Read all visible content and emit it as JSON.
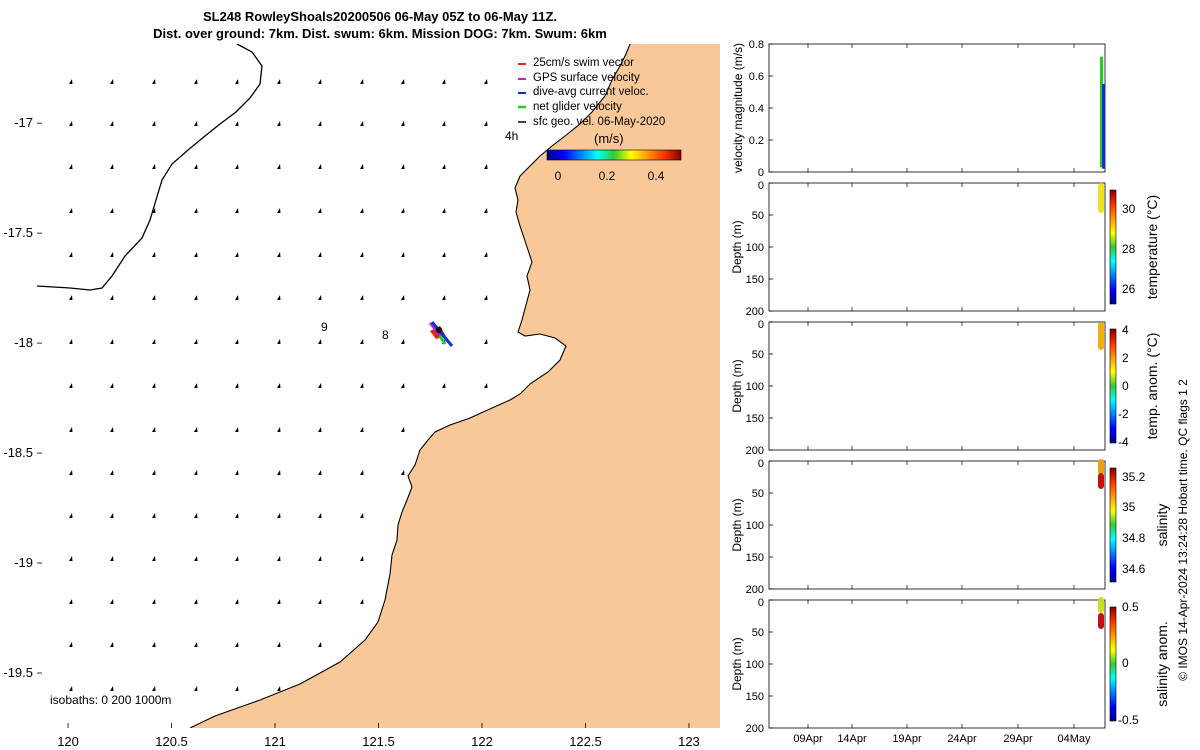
{
  "header": {
    "title_line1": "SL248 RowleyShoals20200506 06-May 05Z to 06-May 11Z.",
    "title_line2": "Dist. over ground: 7km. Dist. swum: 6km. Mission DOG: 7km. Swum: 6km"
  },
  "colors": {
    "land": "#f9c898",
    "water": "#ffffff",
    "swim": "#e8231a",
    "gps": "#c020c8",
    "current": "#1030e0",
    "glider": "#20d020"
  },
  "map": {
    "xticks": [
      "120",
      "120.5",
      "121",
      "121.5",
      "122",
      "122.5",
      "123"
    ],
    "yticks": [
      "-17",
      "-17.5",
      "-18",
      "-18.5",
      "-19",
      "-19.5"
    ],
    "xlim": [
      119.85,
      123.15
    ],
    "ylim": [
      -19.75,
      -16.64
    ],
    "legend": [
      {
        "label": "25cm/s swim vector",
        "color": "#e8231a"
      },
      {
        "label": "GPS surface velocity",
        "color": "#c020c8"
      },
      {
        "label": "dive-avg current veloc.",
        "color": "#1030e0"
      },
      {
        "label": "net glider velocity",
        "color": "#20d020"
      },
      {
        "label": "sfc geo. vel. 06-May-2020",
        "color": "#000000"
      }
    ],
    "age_label": "4h",
    "colorbar_title": "(m/s)",
    "colorbar_ticks": [
      "0",
      "0.2",
      "0.4"
    ],
    "track_labels": [
      {
        "text": "9",
        "lon": 121.2,
        "lat": -17.94
      },
      {
        "text": "8",
        "lon": 121.49,
        "lat": -17.98
      }
    ],
    "isobaths_label": "isobaths: 0   200  1000m"
  },
  "chart_data": [
    {
      "type": "line",
      "title": "",
      "ylabel": "velocity magnitude (m/s)",
      "ylim": [
        0,
        0.8
      ],
      "yticks": [
        "0",
        "0.2",
        "0.4",
        "0.6",
        "0.8"
      ],
      "xticks": [
        "09Apr",
        "14Apr",
        "19Apr",
        "24Apr",
        "29Apr",
        "04May"
      ],
      "series": [
        {
          "values": [
            0.03,
            0.72
          ],
          "color": "#20d020"
        },
        {
          "values": [
            0.02,
            0.55
          ],
          "color": "#1030e0"
        }
      ]
    },
    {
      "type": "heatmap",
      "ylabel": "Depth (m)",
      "yticks": [
        "0",
        "50",
        "100",
        "150",
        "200"
      ],
      "colorbar_label": "temperature (°C)",
      "colorbar_ticks": [
        "30",
        "28",
        "26"
      ],
      "clim": [
        25.2,
        31.0
      ]
    },
    {
      "type": "heatmap",
      "ylabel": "Depth (m)",
      "yticks": [
        "0",
        "50",
        "100",
        "150",
        "200"
      ],
      "colorbar_label": "temp. anom. (°C)",
      "colorbar_ticks": [
        "4",
        "2",
        "0",
        "-2",
        "-4"
      ],
      "clim": [
        -4,
        4
      ]
    },
    {
      "type": "heatmap",
      "ylabel": "Depth (m)",
      "yticks": [
        "0",
        "50",
        "100",
        "150",
        "200"
      ],
      "colorbar_label": "salinity",
      "colorbar_ticks": [
        "35.2",
        "35",
        "34.8",
        "34.6"
      ],
      "clim": [
        34.5,
        35.3
      ]
    },
    {
      "type": "heatmap",
      "ylabel": "Depth (m)",
      "yticks": [
        "0",
        "50",
        "100",
        "150",
        "200"
      ],
      "colorbar_label": "salinity anom.",
      "colorbar_ticks": [
        "0.5",
        "0",
        "-0.5"
      ],
      "clim": [
        -0.5,
        0.5
      ]
    }
  ],
  "credit": {
    "line1": "© IMOS 14-Apr-2024 13:24:28 Hobart time. QC flags 1  2"
  }
}
